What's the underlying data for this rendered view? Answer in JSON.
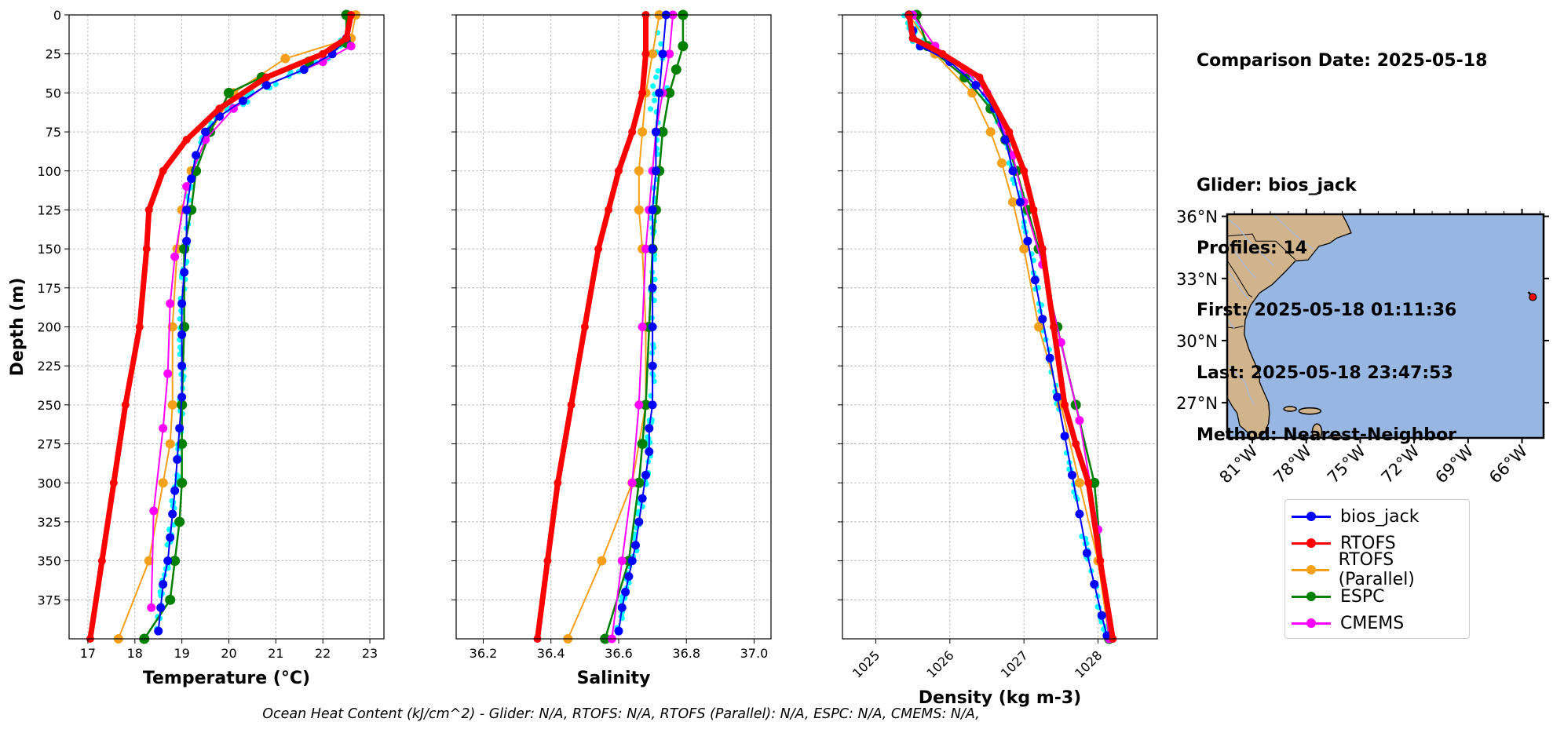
{
  "info": {
    "comparison": "Comparison Date: 2025-05-18",
    "glider": "Glider: bios_jack",
    "profiles": "Profiles: 14",
    "first": "First: 2025-05-18 01:11:36",
    "last": "Last: 2025-05-18 23:47:53",
    "method": "Method: Nearest-Neighbor"
  },
  "footer": "Ocean Heat Content (kJ/cm^2) - Glider: N/A,  RTOFS: N/A,  RTOFS (Parallel): N/A,  ESPC: N/A,  CMEMS: N/A,",
  "colors": {
    "glider": "#0000ff",
    "glider_scatter": "#00ffff",
    "rtofs": "#ff0000",
    "rtofs_parallel": "#f5a01a",
    "espc": "#008000",
    "cmems": "#ff00ff",
    "land": "#d2b48c",
    "ocean": "#97b6e1",
    "grid": "#b0b0b0"
  },
  "legend": [
    {
      "label": "bios_jack",
      "color": "#0000ff"
    },
    {
      "label": "RTOFS",
      "color": "#ff0000"
    },
    {
      "label": "RTOFS (Parallel)",
      "color": "#f5a01a"
    },
    {
      "label": "ESPC",
      "color": "#008000"
    },
    {
      "label": "CMEMS",
      "color": "#ff00ff"
    }
  ],
  "chart_data": [
    {
      "type": "line",
      "xlabel": "Temperature (°C)",
      "ylabel": "Depth (m)",
      "xlim": [
        16.6,
        23.3
      ],
      "ylim": [
        400,
        0
      ],
      "xticks": [
        17,
        18,
        19,
        20,
        21,
        22,
        23
      ],
      "yticks": [
        0,
        25,
        50,
        75,
        100,
        125,
        150,
        175,
        200,
        225,
        250,
        275,
        300,
        325,
        350,
        375
      ],
      "grid": true,
      "series": [
        {
          "name": "bios_jack",
          "x": [
            22.5,
            22.2,
            21.6,
            20.8,
            20.3,
            19.8,
            19.5,
            19.3,
            19.2,
            19.1,
            19.1,
            19.05,
            19.0,
            19.0,
            19.0,
            19.0,
            18.95,
            18.9,
            18.85,
            18.8,
            18.75,
            18.7,
            18.6,
            18.55,
            18.5
          ],
          "y": [
            15,
            25,
            35,
            45,
            55,
            65,
            75,
            90,
            105,
            125,
            145,
            165,
            185,
            205,
            225,
            245,
            265,
            285,
            305,
            320,
            335,
            350,
            365,
            380,
            395
          ]
        },
        {
          "name": "RTOFS",
          "x": [
            22.6,
            22.5,
            22.0,
            20.8,
            19.8,
            19.1,
            18.6,
            18.3,
            18.25,
            18.1,
            17.8,
            17.55,
            17.3,
            17.05
          ],
          "y": [
            0,
            15,
            25,
            40,
            60,
            80,
            100,
            125,
            150,
            200,
            250,
            300,
            350,
            400
          ]
        },
        {
          "name": "RTOFS (Parallel)",
          "x": [
            22.7,
            22.6,
            21.2,
            20.1,
            19.6,
            19.2,
            19.0,
            18.9,
            18.8,
            18.8,
            18.75,
            18.6,
            18.3,
            17.65
          ],
          "y": [
            0,
            15,
            28,
            50,
            75,
            100,
            125,
            150,
            200,
            250,
            275,
            300,
            350,
            400
          ]
        },
        {
          "name": "ESPC",
          "x": [
            22.5,
            22.5,
            21.7,
            20.7,
            20.0,
            19.6,
            19.3,
            19.2,
            19.05,
            19.05,
            19.0,
            19.0,
            19.0,
            18.95,
            18.85,
            18.75,
            18.2
          ],
          "y": [
            0,
            18,
            30,
            40,
            50,
            75,
            100,
            125,
            150,
            200,
            250,
            275,
            300,
            325,
            350,
            375,
            400
          ]
        },
        {
          "name": "CMEMS",
          "x": [
            22.6,
            22.0,
            20.8,
            20.1,
            19.5,
            19.1,
            18.85,
            18.75,
            18.7,
            18.6,
            18.4,
            18.35
          ],
          "y": [
            20,
            30,
            45,
            60,
            80,
            110,
            155,
            185,
            230,
            265,
            318,
            380
          ]
        }
      ]
    },
    {
      "type": "line",
      "xlabel": "Salinity",
      "xlim": [
        36.12,
        37.05
      ],
      "ylim": [
        400,
        0
      ],
      "xticks": [
        36.2,
        36.4,
        36.6,
        36.8,
        37.0
      ],
      "grid": true,
      "series": [
        {
          "name": "bios_jack",
          "x": [
            36.74,
            36.73,
            36.72,
            36.71,
            36.71,
            36.7,
            36.7,
            36.7,
            36.7,
            36.7,
            36.7,
            36.69,
            36.69,
            36.68,
            36.67,
            36.66,
            36.65,
            36.64,
            36.63,
            36.62,
            36.61,
            36.6
          ],
          "y": [
            0,
            25,
            50,
            75,
            100,
            125,
            150,
            175,
            200,
            225,
            250,
            265,
            280,
            295,
            310,
            325,
            340,
            350,
            360,
            370,
            380,
            395
          ]
        },
        {
          "name": "RTOFS",
          "x": [
            36.68,
            36.68,
            36.67,
            36.64,
            36.6,
            36.57,
            36.54,
            36.5,
            36.46,
            36.42,
            36.39,
            36.36
          ],
          "y": [
            0,
            25,
            50,
            75,
            100,
            125,
            150,
            200,
            250,
            300,
            350,
            400
          ]
        },
        {
          "name": "RTOFS (Parallel)",
          "x": [
            36.72,
            36.7,
            36.68,
            36.67,
            36.66,
            36.66,
            36.67,
            36.68,
            36.68,
            36.64,
            36.55,
            36.45
          ],
          "y": [
            0,
            25,
            50,
            75,
            100,
            125,
            150,
            200,
            250,
            300,
            350,
            400
          ]
        },
        {
          "name": "ESPC",
          "x": [
            36.79,
            36.79,
            36.77,
            36.75,
            36.73,
            36.72,
            36.71,
            36.7,
            36.69,
            36.68,
            36.67,
            36.66,
            36.63,
            36.56
          ],
          "y": [
            0,
            20,
            35,
            50,
            75,
            100,
            125,
            150,
            200,
            250,
            275,
            300,
            350,
            400
          ]
        },
        {
          "name": "CMEMS",
          "x": [
            36.76,
            36.75,
            36.73,
            36.71,
            36.7,
            36.69,
            36.68,
            36.67,
            36.66,
            36.64,
            36.61,
            36.58
          ],
          "y": [
            0,
            25,
            50,
            75,
            100,
            125,
            150,
            200,
            250,
            300,
            350,
            400
          ]
        }
      ]
    },
    {
      "type": "line",
      "xlabel": "Density (kg m-3)",
      "xlim": [
        1024.55,
        1028.8
      ],
      "ylim": [
        400,
        0
      ],
      "xticks": [
        1025,
        1026,
        1027,
        1028
      ],
      "grid": true,
      "series": [
        {
          "name": "bios_jack",
          "x": [
            1025.45,
            1025.5,
            1025.6,
            1026.0,
            1026.35,
            1026.6,
            1026.75,
            1026.85,
            1026.95,
            1027.05,
            1027.15,
            1027.25,
            1027.35,
            1027.45,
            1027.55,
            1027.65,
            1027.75,
            1027.85,
            1027.95,
            1028.05,
            1028.12
          ],
          "y": [
            0,
            10,
            20,
            30,
            45,
            60,
            80,
            100,
            120,
            145,
            170,
            195,
            220,
            245,
            270,
            295,
            320,
            345,
            365,
            385,
            398
          ]
        },
        {
          "name": "RTOFS",
          "x": [
            1025.45,
            1025.5,
            1025.9,
            1026.4,
            1026.8,
            1027.0,
            1027.13,
            1027.25,
            1027.4,
            1027.55,
            1027.7,
            1027.87,
            1028.03,
            1028.2
          ],
          "y": [
            0,
            15,
            25,
            40,
            75,
            100,
            125,
            150,
            200,
            250,
            275,
            300,
            350,
            400
          ]
        },
        {
          "name": "RTOFS (Parallel)",
          "x": [
            1025.45,
            1025.8,
            1026.3,
            1026.55,
            1026.7,
            1026.85,
            1027.0,
            1027.2,
            1027.5,
            1027.75,
            1028.0,
            1028.15
          ],
          "y": [
            0,
            25,
            50,
            75,
            95,
            120,
            150,
            200,
            250,
            300,
            350,
            400
          ]
        },
        {
          "name": "ESPC",
          "x": [
            1025.55,
            1025.7,
            1026.2,
            1026.55,
            1026.75,
            1026.9,
            1027.05,
            1027.2,
            1027.45,
            1027.7,
            1027.95,
            1028.15
          ],
          "y": [
            0,
            20,
            40,
            60,
            80,
            100,
            125,
            150,
            200,
            250,
            300,
            400
          ]
        },
        {
          "name": "CMEMS",
          "x": [
            1025.5,
            1025.8,
            1026.2,
            1026.5,
            1026.7,
            1026.85,
            1027.0,
            1027.25,
            1027.5,
            1027.75,
            1028.0,
            1028.15
          ],
          "y": [
            0,
            20,
            35,
            50,
            70,
            90,
            120,
            160,
            210,
            260,
            330,
            400
          ]
        }
      ]
    },
    {
      "type": "map",
      "lon_range": [
        -82.4,
        -64.8
      ],
      "lat_range": [
        25.3,
        36.1
      ],
      "lon_ticks": [
        "81°W",
        "78°W",
        "75°W",
        "72°W",
        "69°W",
        "66°W"
      ],
      "lon_tick_values": [
        -81,
        -78,
        -75,
        -72,
        -69,
        -66
      ],
      "lat_ticks": [
        "36°N",
        "33°N",
        "30°N",
        "27°N"
      ],
      "lat_tick_values": [
        36,
        33,
        30,
        27
      ],
      "glider_position": [
        -65.4,
        32.1
      ]
    }
  ]
}
